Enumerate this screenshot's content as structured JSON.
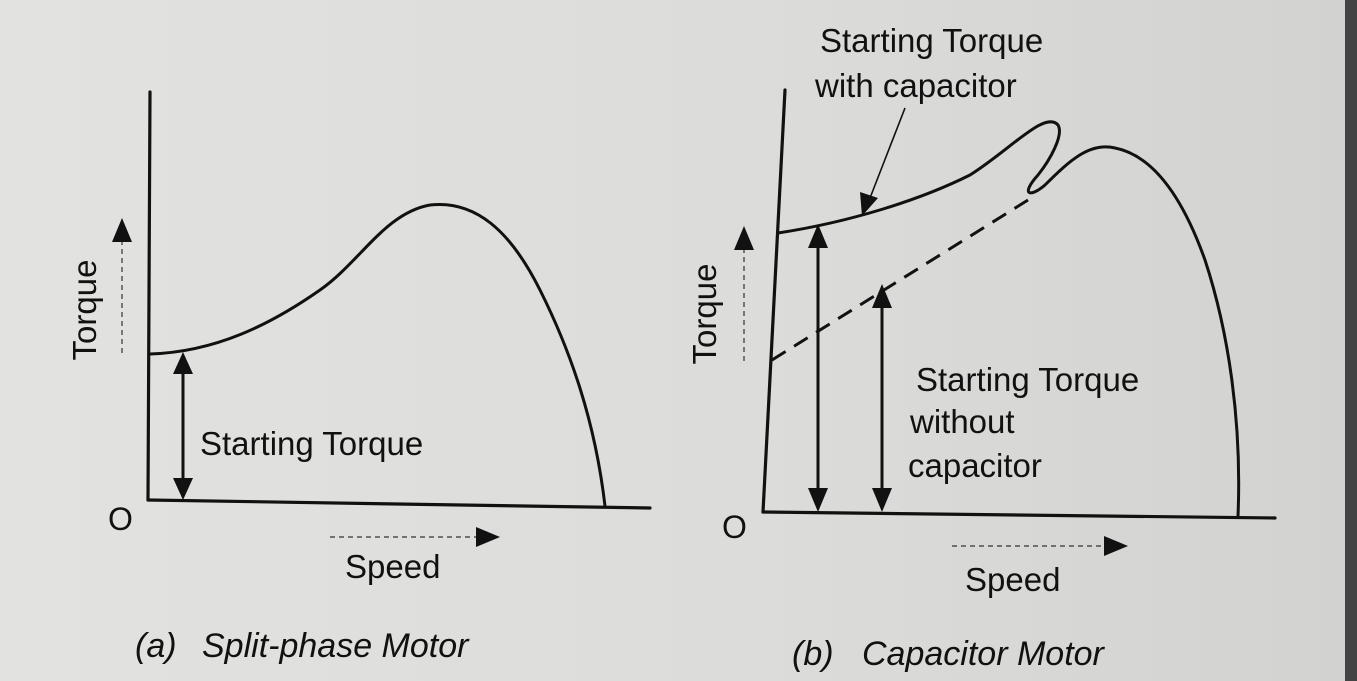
{
  "panel_a": {
    "caption_letter": "(a)",
    "caption_text": "Split-phase Motor",
    "y_axis_label": "Torque",
    "x_axis_label": "Speed",
    "origin_label": "O",
    "annotation": "Starting Torque"
  },
  "panel_b": {
    "caption_letter": "(b)",
    "caption_text": "Capacitor Motor",
    "y_axis_label": "Torque",
    "x_axis_label": "Speed",
    "origin_label": "O",
    "annotation_with_line1": "Starting Torque",
    "annotation_with_line2": "with capacitor",
    "annotation_without_line1": "Starting Torque",
    "annotation_without_line2": "without",
    "annotation_without_line3": "capacitor"
  }
}
